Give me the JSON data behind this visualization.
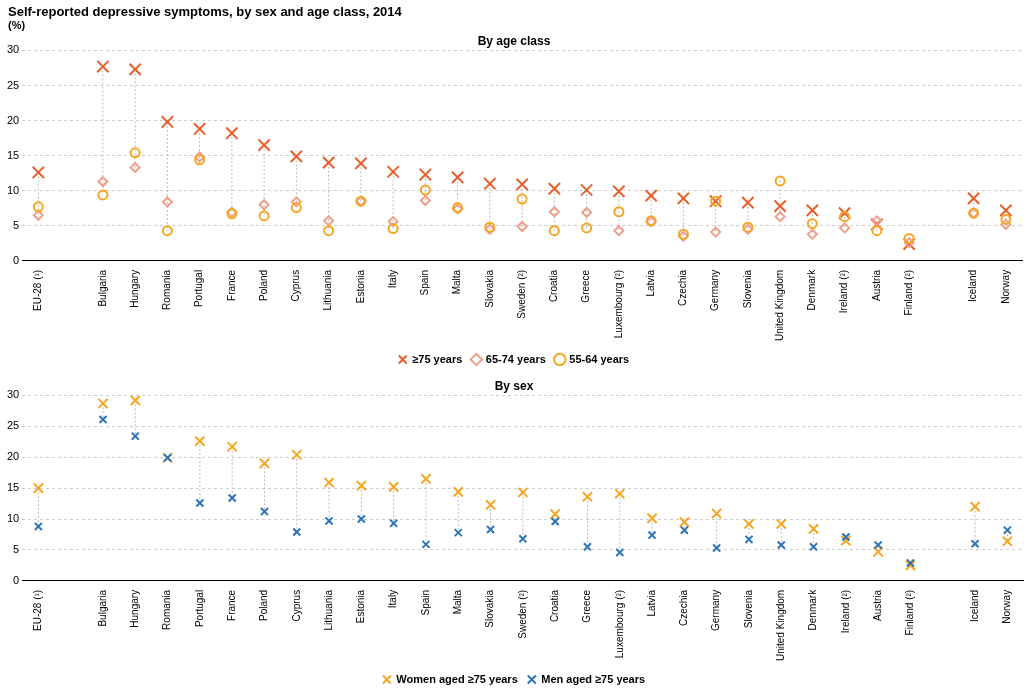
{
  "chart_data": [
    {
      "type": "scatter",
      "title": "Self-reported depressive symptoms, by sex and age class, 2014",
      "subtitle": "By age class",
      "ylabel": "(%)",
      "categories": [
        "EU-28 (¹)",
        null,
        "Bulgaria",
        "Hungary",
        "Romania",
        "Portugal",
        "France",
        "Poland",
        "Cyprus",
        "Lithuania",
        "Estonia",
        "Italy",
        "Spain",
        "Malta",
        "Slovakia",
        "Sweden (²)",
        "Croatia",
        "Greece",
        "Luxembourg (²)",
        "Latvia",
        "Czechia",
        "Germany",
        "Slovenia",
        "United Kingdom",
        "Denmark",
        "Ireland (²)",
        "Austria",
        "Finland (²)",
        null,
        "Iceland",
        "Norway"
      ],
      "series": [
        {
          "name": "≥75 years",
          "color": "#e8602c",
          "marker": "cross",
          "values": [
            12.6,
            null,
            27.7,
            27.3,
            19.8,
            18.8,
            18.2,
            16.5,
            14.9,
            14.0,
            13.9,
            12.7,
            12.3,
            11.9,
            11.0,
            10.9,
            10.3,
            10.1,
            9.9,
            9.3,
            8.9,
            8.5,
            8.3,
            7.8,
            7.2,
            6.8,
            5.2,
            2.4,
            null,
            8.9,
            7.2
          ]
        },
        {
          "name": "65-74 years",
          "color": "#f0a08a",
          "marker": "diamond",
          "values": [
            6.5,
            null,
            11.3,
            13.3,
            8.4,
            14.8,
            6.9,
            8.0,
            8.4,
            5.7,
            8.5,
            5.6,
            8.6,
            7.4,
            4.5,
            4.9,
            7.0,
            6.9,
            4.3,
            5.6,
            3.5,
            4.1,
            4.5,
            6.3,
            3.8,
            4.7,
            5.7,
            2.6,
            null,
            6.8,
            5.2
          ]
        },
        {
          "name": "55-64 years",
          "color": "#f5a623",
          "marker": "circle",
          "values": [
            7.7,
            null,
            9.4,
            15.4,
            4.3,
            14.4,
            6.7,
            6.4,
            7.6,
            4.3,
            8.5,
            4.6,
            10.1,
            7.6,
            4.8,
            8.8,
            4.3,
            4.7,
            7.0,
            5.7,
            3.8,
            8.5,
            4.8,
            11.4,
            5.3,
            6.3,
            4.3,
            3.2,
            null,
            6.8,
            5.9
          ]
        }
      ],
      "ylim": [
        0,
        30
      ],
      "yticks": [
        0,
        5,
        10,
        15,
        20,
        25,
        30
      ],
      "grid": "y",
      "legend": "bottom"
    },
    {
      "type": "scatter",
      "subtitle": "By sex",
      "categories": [
        "EU-28 (¹)",
        null,
        "Bulgaria",
        "Hungary",
        "Romania",
        "Portugal",
        "France",
        "Poland",
        "Cyprus",
        "Lithuania",
        "Estonia",
        "Italy",
        "Spain",
        "Malta",
        "Slovakia",
        "Sweden (²)",
        "Croatia",
        "Greece",
        "Luxembourg (²)",
        "Latvia",
        "Czechia",
        "Germany",
        "Slovenia",
        "United Kingdom",
        "Denmark",
        "Ireland (²)",
        "Austria",
        "Finland (²)",
        null,
        "Iceland",
        "Norway"
      ],
      "series": [
        {
          "name": "Women aged ≥75 years",
          "color": "#f5a623",
          "marker": "cross",
          "values": [
            15.0,
            null,
            28.7,
            29.2,
            19.9,
            22.6,
            21.7,
            19.0,
            20.4,
            15.9,
            15.4,
            15.2,
            16.5,
            14.4,
            12.3,
            14.3,
            10.8,
            13.6,
            14.1,
            10.1,
            9.5,
            10.9,
            9.2,
            9.2,
            8.4,
            6.5,
            4.7,
            2.5,
            null,
            12.0,
            6.4
          ]
        },
        {
          "name": "Men aged ≥75 years",
          "color": "#2e75b6",
          "marker": "cross",
          "values": [
            8.8,
            null,
            26.1,
            23.4,
            19.9,
            12.6,
            13.4,
            11.2,
            7.9,
            9.7,
            10.0,
            9.3,
            5.9,
            7.8,
            8.3,
            6.8,
            9.6,
            5.5,
            4.6,
            7.4,
            8.2,
            5.3,
            6.7,
            5.8,
            5.5,
            7.1,
            5.8,
            2.9,
            null,
            6.0,
            8.2
          ]
        }
      ],
      "ylim": [
        0,
        30
      ],
      "yticks": [
        0,
        5,
        10,
        15,
        20,
        25,
        30
      ],
      "grid": "y",
      "legend": "bottom"
    }
  ]
}
